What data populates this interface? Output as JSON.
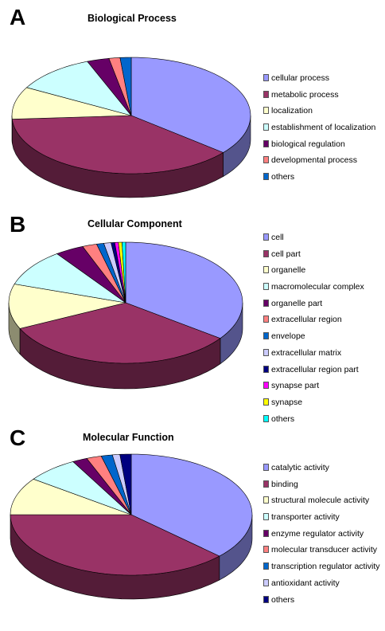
{
  "chart_data": [
    {
      "type": "pie",
      "panel": "A",
      "title": "Biological Process",
      "categories": [
        "cellular process",
        "metabolic process",
        "localization",
        "establishment of localization",
        "biological regulation",
        "developmental process",
        "others"
      ],
      "values": [
        36,
        38,
        9,
        11,
        3,
        1.5,
        1.5
      ],
      "colors": [
        "#9999ff",
        "#993366",
        "#ffffcc",
        "#ccffff",
        "#660066",
        "#ff8080",
        "#0066cc"
      ],
      "legend_position": "right"
    },
    {
      "type": "pie",
      "panel": "B",
      "title": "Cellular Component",
      "categories": [
        "cell",
        "cell part",
        "organelle",
        "macromolecular complex",
        "organelle part",
        "extracellular region",
        "envelope",
        "extracellular matrix",
        "extracellular region part",
        "synapse part",
        "synapse",
        "others"
      ],
      "values": [
        35,
        33,
        12,
        10,
        4,
        2,
        1,
        1,
        0.5,
        0.5,
        0.5,
        0.5
      ],
      "colors": [
        "#9999ff",
        "#993366",
        "#ffffcc",
        "#ccffff",
        "#660066",
        "#ff8080",
        "#0066cc",
        "#ccccff",
        "#000080",
        "#ff00ff",
        "#ffff00",
        "#00ffff"
      ],
      "legend_position": "right"
    },
    {
      "type": "pie",
      "panel": "C",
      "title": "Molecular Function",
      "categories": [
        "catalytic activity",
        "binding",
        "structural molecule activity",
        "transporter activity",
        "enzyme regulator activity",
        "molecular transducer activity",
        "transcription regulator activity",
        "antioxidant activity",
        "others"
      ],
      "values": [
        37,
        38,
        10,
        7,
        2,
        2,
        1.5,
        1,
        1.5
      ],
      "colors": [
        "#9999ff",
        "#993366",
        "#ffffcc",
        "#ccffff",
        "#660066",
        "#ff8080",
        "#0066cc",
        "#ccccff",
        "#000080"
      ],
      "legend_position": "right"
    }
  ]
}
